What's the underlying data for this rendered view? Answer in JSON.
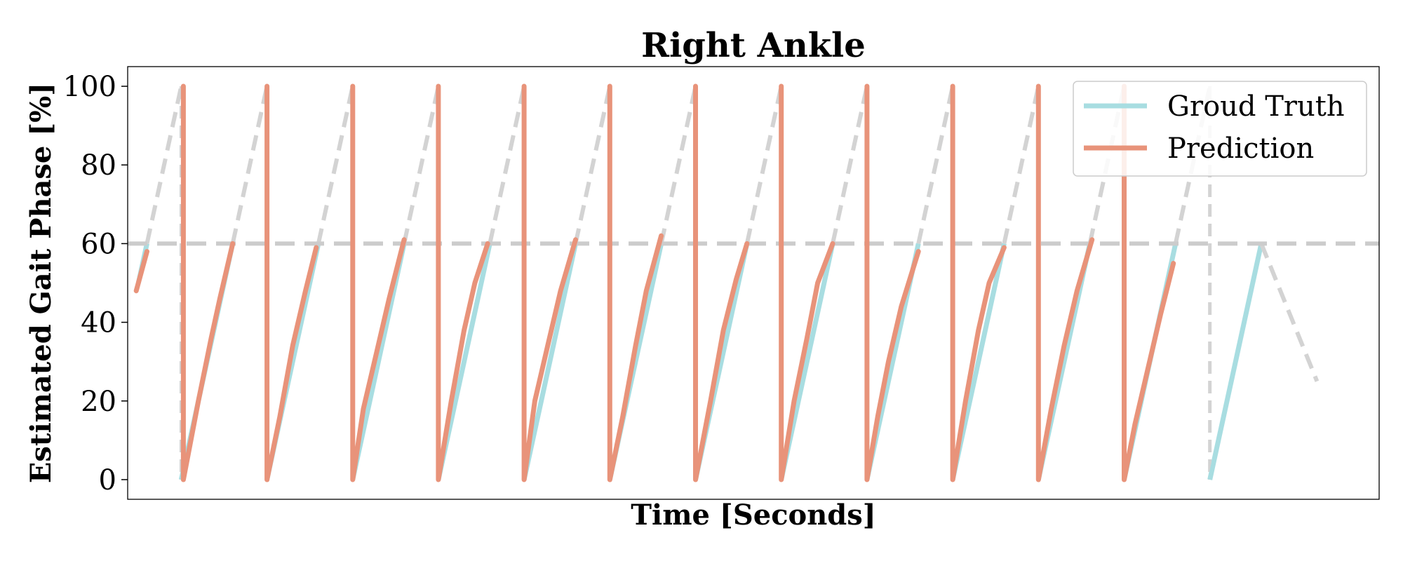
{
  "chart_data": {
    "type": "line",
    "title": "Right Ankle",
    "xlabel": "Time [Seconds]",
    "ylabel": "Estimated Gait Phase [%]",
    "ylim": [
      -5,
      105
    ],
    "xlim": [
      -1.25,
      27.95
    ],
    "y_ticks": [
      0,
      20,
      40,
      60,
      80,
      100
    ],
    "x_ticks_shown": false,
    "grid": false,
    "legend_position": "top-right",
    "threshold_line": {
      "y": 60,
      "style": "dashed",
      "color": "#cccccc"
    },
    "heel_strike_times": [
      0,
      2,
      4,
      6,
      8,
      10,
      12,
      14,
      16,
      18,
      20,
      22,
      24
    ],
    "series": [
      {
        "name": "Groud Truth",
        "color": "#a8dde1",
        "cycle_length": 2,
        "x_range": [
          -1,
          26.5
        ],
        "style": "solid where y <= 60, dashed light gray where y > 60"
      },
      {
        "name": "Prediction",
        "color": "#e8937a",
        "segments": [
          [
            [
              -1.05,
              48
            ],
            [
              -0.8,
              58
            ]
          ],
          [
            [
              0.05,
              100
            ],
            [
              0.05,
              0
            ],
            [
              0.4,
              20
            ],
            [
              0.7,
              36
            ],
            [
              0.9,
              46
            ],
            [
              1.2,
              60
            ]
          ],
          [
            [
              2.0,
              100
            ],
            [
              2.0,
              0
            ],
            [
              2.3,
              16
            ],
            [
              2.6,
              34
            ],
            [
              2.9,
              48
            ],
            [
              3.15,
              59
            ]
          ],
          [
            [
              4.0,
              100
            ],
            [
              4.0,
              0
            ],
            [
              4.25,
              18
            ],
            [
              4.55,
              32
            ],
            [
              4.85,
              46
            ],
            [
              5.2,
              61
            ]
          ],
          [
            [
              6.0,
              100
            ],
            [
              6.0,
              0
            ],
            [
              6.3,
              20
            ],
            [
              6.6,
              38
            ],
            [
              6.85,
              50
            ],
            [
              7.15,
              60
            ]
          ],
          [
            [
              8.0,
              100
            ],
            [
              8.0,
              0
            ],
            [
              8.25,
              20
            ],
            [
              8.55,
              34
            ],
            [
              8.85,
              48
            ],
            [
              9.2,
              61
            ]
          ],
          [
            [
              10.0,
              100
            ],
            [
              10.0,
              0
            ],
            [
              10.3,
              16
            ],
            [
              10.6,
              34
            ],
            [
              10.85,
              48
            ],
            [
              11.2,
              62
            ]
          ],
          [
            [
              12.0,
              100
            ],
            [
              12.0,
              0
            ],
            [
              12.35,
              20
            ],
            [
              12.65,
              38
            ],
            [
              12.95,
              51
            ],
            [
              13.2,
              60
            ]
          ],
          [
            [
              14.0,
              100
            ],
            [
              14.0,
              0
            ],
            [
              14.3,
              20
            ],
            [
              14.6,
              36
            ],
            [
              14.85,
              50
            ],
            [
              15.2,
              60
            ]
          ],
          [
            [
              16.0,
              100
            ],
            [
              16.0,
              0
            ],
            [
              16.25,
              16
            ],
            [
              16.5,
              30
            ],
            [
              16.8,
              44
            ],
            [
              17.2,
              58
            ]
          ],
          [
            [
              18.0,
              100
            ],
            [
              18.0,
              0
            ],
            [
              18.3,
              20
            ],
            [
              18.6,
              38
            ],
            [
              18.85,
              50
            ],
            [
              19.2,
              59
            ]
          ],
          [
            [
              20.0,
              100
            ],
            [
              20.0,
              0
            ],
            [
              20.3,
              18
            ],
            [
              20.6,
              34
            ],
            [
              20.9,
              48
            ],
            [
              21.25,
              61
            ]
          ],
          [
            [
              22.0,
              100
            ],
            [
              22.0,
              0
            ],
            [
              22.25,
              14
            ],
            [
              22.55,
              28
            ],
            [
              22.85,
              42
            ],
            [
              23.15,
              55
            ]
          ]
        ]
      }
    ]
  }
}
